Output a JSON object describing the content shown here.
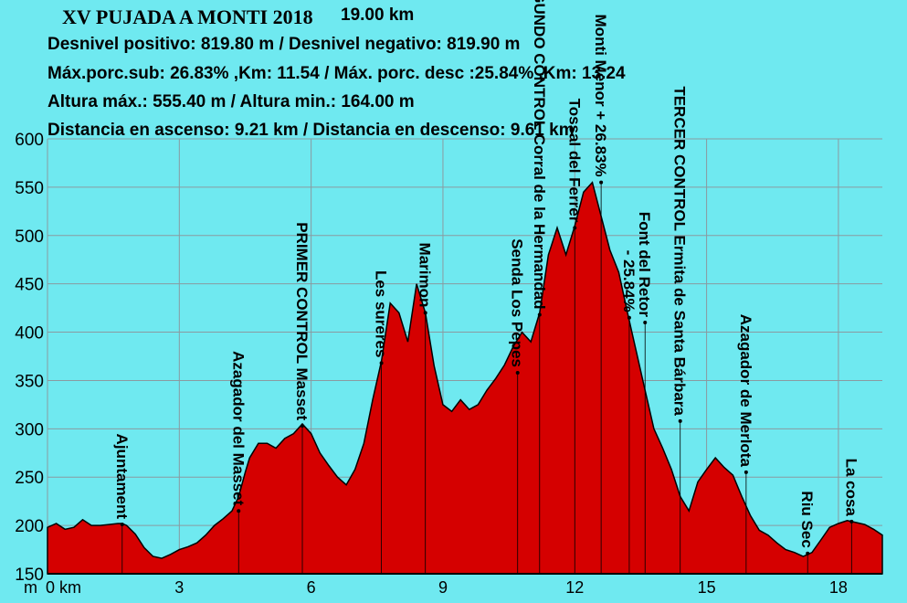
{
  "header": {
    "title": "XV PUJADA A MONTI 2018",
    "distance": "19.00 km",
    "line1": "Desnivel positivo: 819.80 m / Desnivel negativo: 819.90 m",
    "line2": "Máx.porc.sub: 26.83% ,Km: 11.54 / Máx. porc. desc :25.84% ,Km: 13.24",
    "line3": "Altura máx.: 555.40 m / Altura min.: 164.00 m",
    "line4": "Distancia en ascenso: 9.21 km / Distancia en descenso: 9.61 km"
  },
  "colors": {
    "background": "#6fe9f0",
    "fill": "#d50000",
    "line": "#000000"
  },
  "chart_data": {
    "type": "area",
    "ylim": [
      150,
      600
    ],
    "xlim": [
      0,
      19
    ],
    "yticks": [
      "150",
      "200",
      "250",
      "300",
      "350",
      "400",
      "450",
      "500",
      "550",
      "600"
    ],
    "xtick_unit": "m",
    "xticks": [
      {
        "x": 0,
        "label": "0 km"
      },
      {
        "x": 3,
        "label": "3"
      },
      {
        "x": 6,
        "label": "6"
      },
      {
        "x": 9,
        "label": "9"
      },
      {
        "x": 12,
        "label": "12"
      },
      {
        "x": 15,
        "label": "15"
      },
      {
        "x": 18,
        "label": "18"
      }
    ],
    "x": [
      0,
      0.2,
      0.4,
      0.6,
      0.8,
      1.0,
      1.2,
      1.4,
      1.6,
      1.7,
      1.8,
      2.0,
      2.2,
      2.4,
      2.6,
      2.8,
      3.0,
      3.2,
      3.4,
      3.6,
      3.8,
      4.0,
      4.2,
      4.35,
      4.5,
      4.6,
      4.8,
      5.0,
      5.2,
      5.4,
      5.6,
      5.8,
      6.0,
      6.2,
      6.4,
      6.6,
      6.8,
      7.0,
      7.2,
      7.4,
      7.6,
      7.8,
      8.0,
      8.2,
      8.4,
      8.6,
      8.8,
      9.0,
      9.2,
      9.4,
      9.6,
      9.8,
      10.0,
      10.2,
      10.4,
      10.6,
      10.8,
      11.0,
      11.2,
      11.4,
      11.6,
      11.8,
      12.0,
      12.2,
      12.4,
      12.6,
      12.8,
      13.0,
      13.2,
      13.4,
      13.6,
      13.8,
      14.0,
      14.2,
      14.4,
      14.6,
      14.8,
      15.0,
      15.2,
      15.4,
      15.6,
      15.8,
      16.0,
      16.2,
      16.4,
      16.6,
      16.8,
      17.0,
      17.2,
      17.4,
      17.6,
      17.8,
      18.0,
      18.2,
      18.4,
      18.6,
      18.8,
      19.0
    ],
    "series": [
      {
        "values": [
          198,
          202,
          196,
          198,
          206,
          200,
          200,
          201,
          202,
          202,
          200,
          191,
          177,
          168,
          166,
          170,
          175,
          178,
          182,
          190,
          200,
          207,
          215,
          230,
          255,
          270,
          285,
          285,
          280,
          290,
          295,
          305,
          295,
          275,
          262,
          250,
          242,
          258,
          285,
          330,
          370,
          430,
          420,
          390,
          450,
          420,
          365,
          325,
          318,
          330,
          320,
          325,
          340,
          352,
          366,
          385,
          400,
          390,
          420,
          480,
          508,
          480,
          510,
          545,
          555,
          520,
          485,
          462,
          420,
          380,
          340,
          300,
          280,
          258,
          230,
          215,
          245,
          258,
          270,
          260,
          252,
          230,
          210,
          195,
          190,
          182,
          175,
          172,
          168,
          172,
          185,
          198,
          202,
          205,
          203,
          201,
          196,
          190
        ]
      }
    ],
    "waypoints": [
      {
        "x": 1.7,
        "y": 201,
        "label": "Ajuntament"
      },
      {
        "x": 4.35,
        "y": 215,
        "label": "Azagador del Masset"
      },
      {
        "x": 5.8,
        "y": 303,
        "label": "PRIMER CONTROL  Masset"
      },
      {
        "x": 7.6,
        "y": 368,
        "label": "Les sureres"
      },
      {
        "x": 8.6,
        "y": 420,
        "label": "Marimon"
      },
      {
        "x": 10.7,
        "y": 358,
        "label": "Senda Los Pepes"
      },
      {
        "x": 11.2,
        "y": 418,
        "label": "SEGUNDO CONTROL Corral de la Hermandad"
      },
      {
        "x": 12.0,
        "y": 508,
        "label": "Tossal del Ferrer"
      },
      {
        "x": 12.6,
        "y": 555,
        "label": "Monti Menor  + 26.83%"
      },
      {
        "x": 13.24,
        "y": 415,
        "label": "- 25.84%"
      },
      {
        "x": 13.6,
        "y": 410,
        "label": "Font del Retor"
      },
      {
        "x": 14.4,
        "y": 308,
        "label": "TERCER CONTROL  Ermita de Santa Bárbara"
      },
      {
        "x": 15.9,
        "y": 255,
        "label": "Azagador de Merlota"
      },
      {
        "x": 17.3,
        "y": 171,
        "label": "Riu Sec"
      },
      {
        "x": 18.3,
        "y": 204,
        "label": "La cosa"
      }
    ]
  }
}
